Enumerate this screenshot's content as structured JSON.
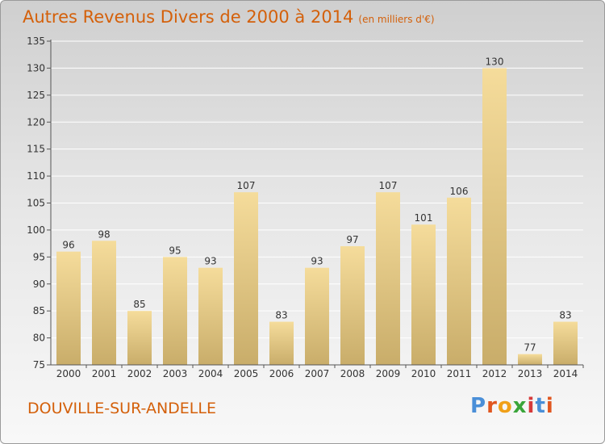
{
  "header": {
    "title": "Autres Revenus Divers de 2000 à 2014",
    "subtitle": "(en milliers d'€)"
  },
  "footer": {
    "commune": "DOUVILLE-SUR-ANDELLE",
    "logo_text": "Proxiti"
  },
  "colors": {
    "title": "#d4600a",
    "bar_top": "#f5dc9b",
    "bar_bottom": "#c9ad6a",
    "gridline": "#ffffff",
    "logo": [
      "#4a8fd8",
      "#e0561f",
      "#f0a018",
      "#3aa53a",
      "#d63a3a",
      "#4a8fd8",
      "#e0561f"
    ]
  },
  "chart_data": {
    "type": "bar",
    "title": "Autres Revenus Divers de 2000 à 2014",
    "subtitle": "(en milliers d'€)",
    "xlabel": "",
    "ylabel": "",
    "categories": [
      "2000",
      "2001",
      "2002",
      "2003",
      "2004",
      "2005",
      "2006",
      "2007",
      "2008",
      "2009",
      "2010",
      "2011",
      "2012",
      "2013",
      "2014"
    ],
    "values": [
      96,
      98,
      85,
      95,
      93,
      107,
      83,
      93,
      97,
      107,
      101,
      106,
      130,
      77,
      83
    ],
    "ylim": [
      75,
      135
    ],
    "yticks": [
      75,
      80,
      85,
      90,
      95,
      100,
      105,
      110,
      115,
      120,
      125,
      130,
      135
    ],
    "grid": true,
    "data_labels": true
  }
}
